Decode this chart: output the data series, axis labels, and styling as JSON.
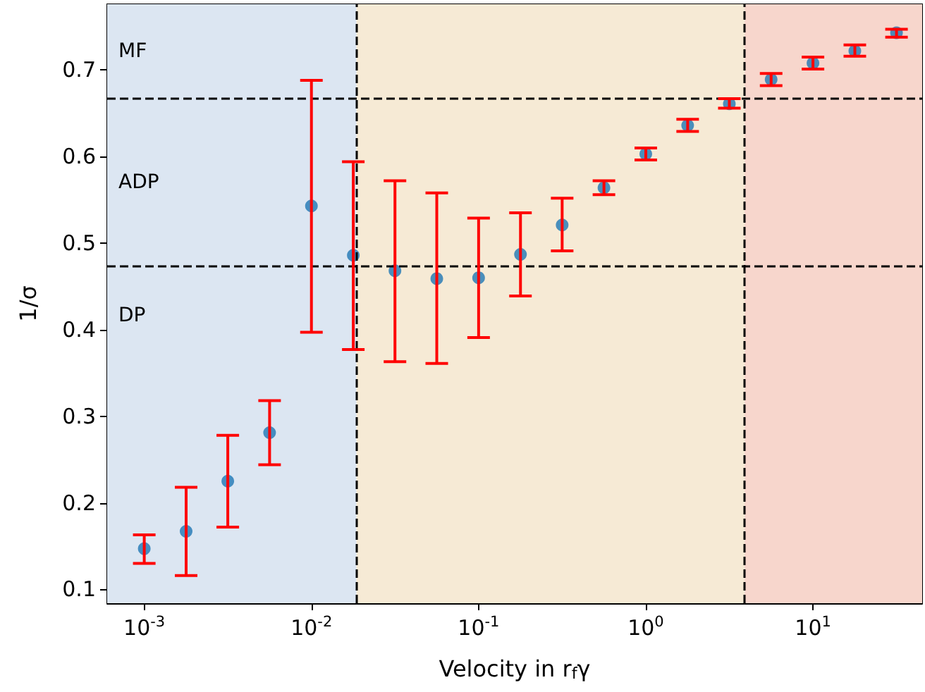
{
  "chart_data": {
    "type": "scatter",
    "xlabel": "Velocity in r$_{f}$γ",
    "ylabel": "1/σ",
    "log": "x",
    "x": [
      0.001,
      0.00178,
      0.00316,
      0.00562,
      0.01,
      0.0178,
      0.0316,
      0.0562,
      0.1,
      0.178,
      0.316,
      0.562,
      1,
      1.78,
      3.16,
      5.62,
      10,
      17.8,
      31.6
    ],
    "series": [
      {
        "color": "#1f77b4",
        "values": [
          0.147,
          0.167,
          0.225,
          0.281,
          0.543,
          0.486,
          0.468,
          0.459,
          0.46,
          0.487,
          0.521,
          0.564,
          0.603,
          0.636,
          0.661,
          0.689,
          0.708,
          0.722,
          0.743
        ],
        "errors": [
          [
            0.13,
            0.163
          ],
          [
            0.116,
            0.218
          ],
          [
            0.172,
            0.278
          ],
          [
            0.244,
            0.318
          ],
          [
            0.397,
            0.688
          ],
          [
            0.377,
            0.594
          ],
          [
            0.363,
            0.572
          ],
          [
            0.361,
            0.558
          ],
          [
            0.391,
            0.529
          ],
          [
            0.439,
            0.535
          ],
          [
            0.491,
            0.552
          ],
          [
            0.556,
            0.572
          ],
          [
            0.596,
            0.61
          ],
          [
            0.629,
            0.643
          ],
          [
            0.656,
            0.667
          ],
          [
            0.682,
            0.696
          ],
          [
            0.701,
            0.715
          ],
          [
            0.716,
            0.729
          ],
          [
            0.738,
            0.747
          ]
        ]
      }
    ],
    "xlim": [
      0.0006,
      45
    ],
    "ylim": [
      0.084,
      0.776
    ],
    "xticks": [
      {
        "value": 0.001,
        "label": "10$^{-3}$"
      },
      {
        "value": 0.01,
        "label": "10$^{-2}$"
      },
      {
        "value": 0.1,
        "label": "10$^{-1}$"
      },
      {
        "value": 1,
        "label": "10$^{0}$"
      },
      {
        "value": 10,
        "label": "10$^{1}$"
      }
    ],
    "yticks": [
      0.1,
      0.2,
      0.3,
      0.4,
      0.5,
      0.6,
      0.7
    ],
    "ref_lines": [
      {
        "axis": "y",
        "value": 0.667,
        "color": "#000000",
        "line_style": "dashed"
      },
      {
        "axis": "y",
        "value": 0.473,
        "color": "#000000",
        "line_style": "dashed"
      },
      {
        "axis": "x",
        "value": 0.0186,
        "color": "#000000",
        "line_style": "dashed"
      },
      {
        "axis": "x",
        "value": 3.9,
        "color": "#000000",
        "line_style": "dashed"
      }
    ],
    "bands": [
      {
        "axis": "x",
        "from": 0.0006,
        "to": 0.0186,
        "color": "#dce6f2"
      },
      {
        "axis": "x",
        "from": 0.0186,
        "to": 3.9,
        "color": "#f6ead5"
      },
      {
        "axis": "x",
        "from": 3.9,
        "to": 45,
        "color": "#f7d6cc"
      }
    ],
    "annotations": [
      "MF",
      "ADP",
      "DP"
    ],
    "grid": false,
    "marker": "circle"
  }
}
